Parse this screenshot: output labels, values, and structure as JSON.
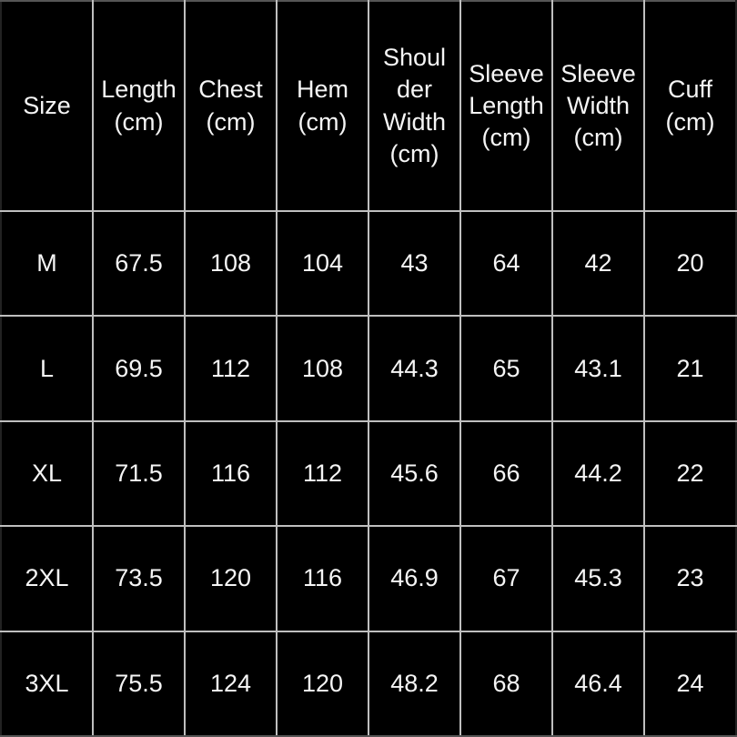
{
  "colors": {
    "background": "#000000",
    "text": "#f5f5f5",
    "grid_lines": "#bfbfbf"
  },
  "chart_data": {
    "type": "table",
    "columns": [
      "Size",
      "Length (cm)",
      "Chest (cm)",
      "Hem (cm)",
      "Shoulder Width (cm)",
      "Sleeve Length (cm)",
      "Sleeve Width (cm)",
      "Cuff (cm)"
    ],
    "rows": [
      [
        "M",
        "67.5",
        "108",
        "104",
        "43",
        "64",
        "42",
        "20"
      ],
      [
        "L",
        "69.5",
        "112",
        "108",
        "44.3",
        "65",
        "43.1",
        "21"
      ],
      [
        "XL",
        "71.5",
        "116",
        "112",
        "45.6",
        "66",
        "44.2",
        "22"
      ],
      [
        "2XL",
        "73.5",
        "120",
        "116",
        "46.9",
        "67",
        "45.3",
        "23"
      ],
      [
        "3XL",
        "75.5",
        "124",
        "120",
        "48.2",
        "68",
        "46.4",
        "24"
      ]
    ]
  }
}
